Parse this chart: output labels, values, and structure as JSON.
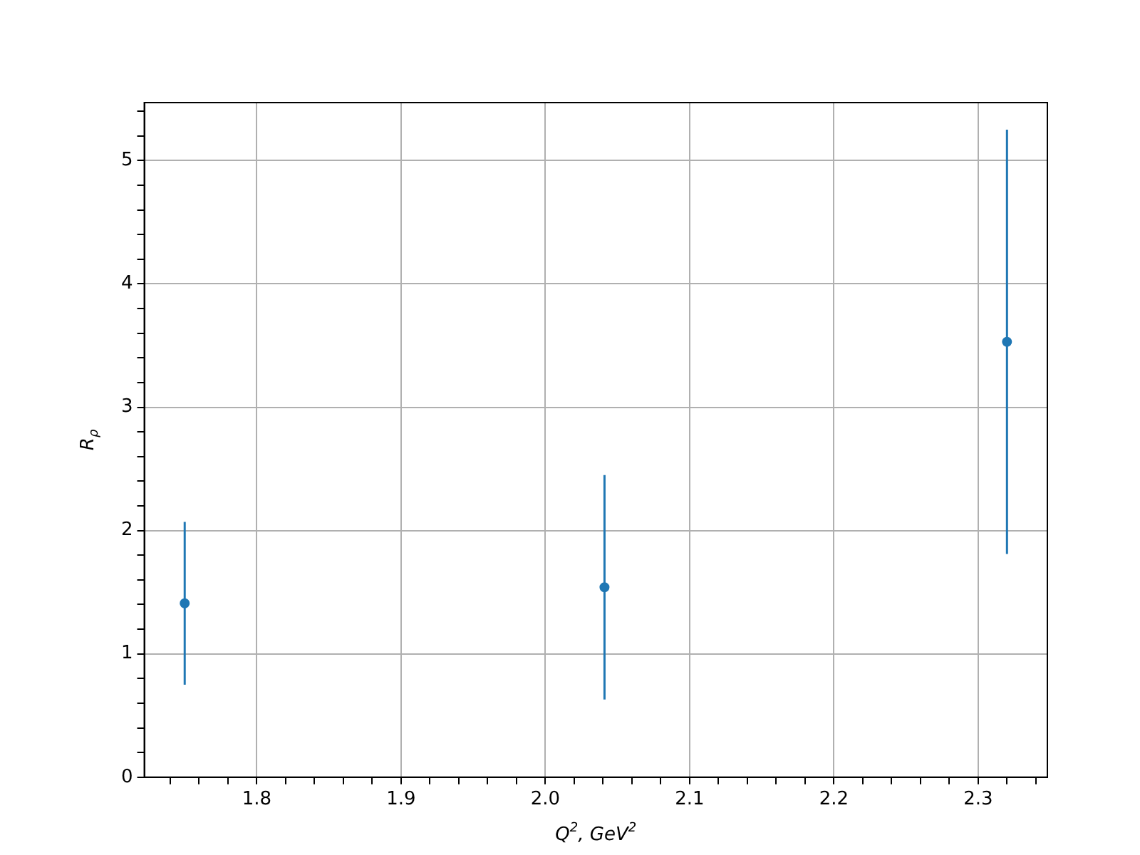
{
  "chart_data": {
    "type": "scatter",
    "xlabel": "Q$^{2}$, GeV$^{2}$",
    "ylabel": "R$_{ρ}$",
    "x": [
      1.75,
      2.041,
      2.32
    ],
    "series": [
      {
        "color": "#1f77b4",
        "values": [
          1.41,
          1.54,
          3.53
        ],
        "errors": [
          0.66,
          0.91,
          1.72
        ]
      }
    ],
    "xlim": [
      1.722,
      2.348
    ],
    "xticks": [
      {
        "value": 1.74,
        "label": null
      },
      {
        "value": 1.76,
        "label": null
      },
      {
        "value": 1.78,
        "label": null
      },
      1.8,
      {
        "value": 1.82,
        "label": null
      },
      {
        "value": 1.84,
        "label": null
      },
      {
        "value": 1.86,
        "label": null
      },
      {
        "value": 1.88,
        "label": null
      },
      1.9,
      {
        "value": 1.92,
        "label": null
      },
      {
        "value": 1.94,
        "label": null
      },
      {
        "value": 1.96,
        "label": null
      },
      {
        "value": 1.98,
        "label": null
      },
      {
        "value": 2.0,
        "label": "2.0"
      },
      {
        "value": 2.02,
        "label": null
      },
      {
        "value": 2.04,
        "label": null
      },
      {
        "value": 2.06,
        "label": null
      },
      {
        "value": 2.08,
        "label": null
      },
      2.1,
      {
        "value": 2.12,
        "label": null
      },
      {
        "value": 2.14,
        "label": null
      },
      {
        "value": 2.16,
        "label": null
      },
      {
        "value": 2.18,
        "label": null
      },
      2.2,
      {
        "value": 2.22,
        "label": null
      },
      {
        "value": 2.24,
        "label": null
      },
      {
        "value": 2.26,
        "label": null
      },
      {
        "value": 2.28,
        "label": null
      },
      2.3,
      {
        "value": 2.32,
        "label": null
      },
      {
        "value": 2.34,
        "label": null
      }
    ],
    "ylim": [
      0,
      5.47
    ],
    "yticks": [
      0,
      {
        "value": 0.2,
        "label": null
      },
      {
        "value": 0.4,
        "label": null
      },
      {
        "value": 0.6,
        "label": null
      },
      {
        "value": 0.8,
        "label": null
      },
      1,
      {
        "value": 1.2,
        "label": null
      },
      {
        "value": 1.4,
        "label": null
      },
      {
        "value": 1.6,
        "label": null
      },
      {
        "value": 1.8,
        "label": null
      },
      2,
      {
        "value": 2.2,
        "label": null
      },
      {
        "value": 2.4,
        "label": null
      },
      {
        "value": 2.6,
        "label": null
      },
      {
        "value": 2.8,
        "label": null
      },
      3,
      {
        "value": 3.2,
        "label": null
      },
      {
        "value": 3.4,
        "label": null
      },
      {
        "value": 3.6,
        "label": null
      },
      {
        "value": 3.8,
        "label": null
      },
      4,
      {
        "value": 4.2,
        "label": null
      },
      {
        "value": 4.4,
        "label": null
      },
      {
        "value": 4.6,
        "label": null
      },
      {
        "value": 4.8,
        "label": null
      },
      5,
      {
        "value": 5.2,
        "label": null
      },
      {
        "value": 5.4,
        "label": null
      }
    ],
    "grid": true,
    "marker": "circle",
    "legend": false
  }
}
